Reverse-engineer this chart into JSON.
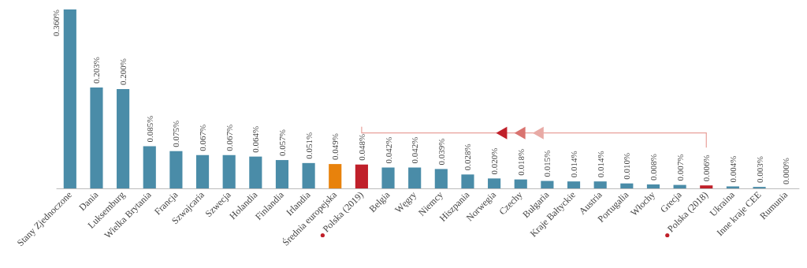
{
  "chart_data": {
    "type": "bar",
    "categories": [
      "Stany Zjednoczone",
      "Dania",
      "Luksemburg",
      "Wielka Brytania",
      "Francja",
      "Szwajcaria",
      "Szwecja",
      "Holandia",
      "Finlandia",
      "Irlandia",
      "Średnia europejska",
      "Polska (2019)",
      "Belgia",
      "Węgry",
      "Niemcy",
      "Hiszpania",
      "Norwegia",
      "Czechy",
      "Bułgaria",
      "Kraje Bałtyckie",
      "Austria",
      "Portugalia",
      "Włochy",
      "Grecja",
      "Polska (2018)",
      "Ukraina",
      "Inne kraje CEE",
      "Rumunia"
    ],
    "values": [
      0.36,
      0.203,
      0.2,
      0.085,
      0.075,
      0.067,
      0.067,
      0.064,
      0.057,
      0.051,
      0.049,
      0.048,
      0.042,
      0.042,
      0.039,
      0.028,
      0.02,
      0.018,
      0.015,
      0.014,
      0.014,
      0.01,
      0.008,
      0.007,
      0.006,
      0.004,
      0.003,
      0.0
    ],
    "value_labels": [
      "0.360%",
      "0.203%",
      "0.200%",
      "0.085%",
      "0.075%",
      "0.067%",
      "0.067%",
      "0.064%",
      "0.057%",
      "0.051%",
      "0.049%",
      "0.048%",
      "0.042%",
      "0.042%",
      "0.039%",
      "0.028%",
      "0.020%",
      "0.018%",
      "0.015%",
      "0.014%",
      "0.014%",
      "0.010%",
      "0.008%",
      "0.007%",
      "0.006%",
      "0.004%",
      "0.003%",
      "0.000%"
    ],
    "colors": [
      "#4a8ca8",
      "#4a8ca8",
      "#4a8ca8",
      "#4a8ca8",
      "#4a8ca8",
      "#4a8ca8",
      "#4a8ca8",
      "#4a8ca8",
      "#4a8ca8",
      "#4a8ca8",
      "#e8820c",
      "#c0202a",
      "#4a8ca8",
      "#4a8ca8",
      "#4a8ca8",
      "#4a8ca8",
      "#4a8ca8",
      "#4a8ca8",
      "#4a8ca8",
      "#4a8ca8",
      "#4a8ca8",
      "#4a8ca8",
      "#4a8ca8",
      "#4a8ca8",
      "#c0202a",
      "#4a8ca8",
      "#4a8ca8",
      "#4a8ca8"
    ],
    "ylim": [
      0,
      0.36
    ]
  }
}
